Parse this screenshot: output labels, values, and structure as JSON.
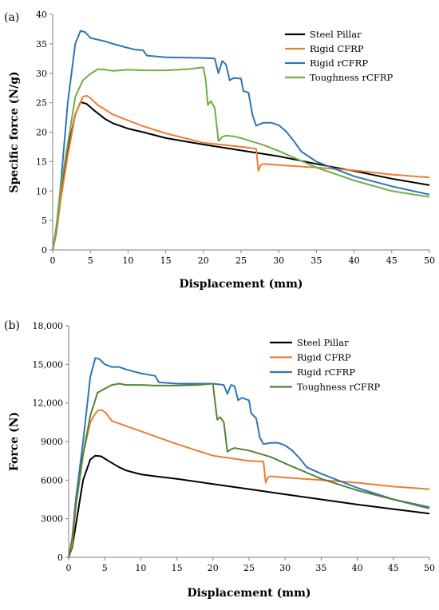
{
  "chart_data": [
    {
      "type": "line",
      "panel_label": "(a)",
      "xlabel": "Displacement (mm)",
      "ylabel": "Specific force (N/g)",
      "xlim": [
        0,
        50
      ],
      "ylim": [
        0,
        40
      ],
      "x_ticks": [
        "0",
        "5",
        "10",
        "15",
        "20",
        "25",
        "30",
        "35",
        "40",
        "45",
        "50"
      ],
      "y_ticks": [
        "0",
        "5",
        "10",
        "15",
        "20",
        "25",
        "30",
        "35",
        "40"
      ],
      "grid": false,
      "legend_position": "top-right",
      "series": [
        {
          "name": "Steel Pillar",
          "color": "#000000",
          "points": [
            [
              0,
              0
            ],
            [
              0.5,
              3
            ],
            [
              1,
              8
            ],
            [
              2,
              17
            ],
            [
              3,
              23
            ],
            [
              3.7,
              25.1
            ],
            [
              4.5,
              24.8
            ],
            [
              5.5,
              23.7
            ],
            [
              7,
              22.2
            ],
            [
              8,
              21.5
            ],
            [
              10,
              20.6
            ],
            [
              12,
              20
            ],
            [
              15,
              19
            ],
            [
              20,
              17.9
            ],
            [
              25,
              16.9
            ],
            [
              30,
              15.9
            ],
            [
              35,
              14.6
            ],
            [
              40,
              13.4
            ],
            [
              45,
              12.1
            ],
            [
              50,
              11
            ]
          ]
        },
        {
          "name": "Rigid CFRP",
          "color": "#ed7d31",
          "points": [
            [
              0,
              0
            ],
            [
              0.5,
              3
            ],
            [
              1,
              8
            ],
            [
              2,
              16
            ],
            [
              3,
              23
            ],
            [
              3.5,
              24.5
            ],
            [
              4,
              26
            ],
            [
              4.5,
              26.2
            ],
            [
              5,
              25.8
            ],
            [
              6,
              24.6
            ],
            [
              8,
              23
            ],
            [
              10,
              22
            ],
            [
              12,
              21
            ],
            [
              15,
              19.8
            ],
            [
              20,
              18.2
            ],
            [
              25,
              17.5
            ],
            [
              27,
              17.2
            ],
            [
              27.3,
              13.4
            ],
            [
              27.6,
              14.4
            ],
            [
              28,
              14.6
            ],
            [
              30,
              14.4
            ],
            [
              35,
              14
            ],
            [
              40,
              13.5
            ],
            [
              45,
              12.8
            ],
            [
              50,
              12.3
            ]
          ]
        },
        {
          "name": "Rigid rCFRP",
          "color": "#2e75b6",
          "points": [
            [
              0,
              0
            ],
            [
              0.5,
              4
            ],
            [
              1,
              10
            ],
            [
              2,
              25
            ],
            [
              3,
              35
            ],
            [
              3.7,
              37.2
            ],
            [
              4.3,
              37
            ],
            [
              5,
              36
            ],
            [
              6,
              35.7
            ],
            [
              7,
              35.4
            ],
            [
              8,
              35
            ],
            [
              10,
              34.3
            ],
            [
              11,
              34
            ],
            [
              12,
              33.9
            ],
            [
              12.5,
              33
            ],
            [
              15,
              32.7
            ],
            [
              20,
              32.6
            ],
            [
              21.5,
              32.5
            ],
            [
              22,
              30
            ],
            [
              22.5,
              32.1
            ],
            [
              23,
              31.5
            ],
            [
              23.5,
              28.8
            ],
            [
              24,
              29.2
            ],
            [
              25,
              29.1
            ],
            [
              25.3,
              27
            ],
            [
              26,
              26.7
            ],
            [
              26.5,
              23
            ],
            [
              27,
              21.1
            ],
            [
              28,
              21.6
            ],
            [
              29,
              21.6
            ],
            [
              30,
              21.2
            ],
            [
              31,
              20.1
            ],
            [
              32,
              18.5
            ],
            [
              33,
              16.7
            ],
            [
              35,
              15
            ],
            [
              40,
              12.5
            ],
            [
              45,
              10.8
            ],
            [
              50,
              9.4
            ]
          ]
        },
        {
          "name": "Toughness rCFRP",
          "color": "#70ad47",
          "points": [
            [
              0,
              0
            ],
            [
              0.5,
              4
            ],
            [
              1,
              10
            ],
            [
              2,
              18
            ],
            [
              3,
              26
            ],
            [
              4,
              28.8
            ],
            [
              5,
              29.9
            ],
            [
              6,
              30.7
            ],
            [
              7,
              30.6
            ],
            [
              8,
              30.4
            ],
            [
              9,
              30.5
            ],
            [
              10,
              30.6
            ],
            [
              12,
              30.5
            ],
            [
              15,
              30.5
            ],
            [
              18,
              30.7
            ],
            [
              20,
              31
            ],
            [
              20.3,
              29
            ],
            [
              20.6,
              24.6
            ],
            [
              21,
              25.3
            ],
            [
              21.5,
              24.1
            ],
            [
              22,
              18.5
            ],
            [
              22.5,
              19.2
            ],
            [
              23,
              19.4
            ],
            [
              24,
              19.3
            ],
            [
              25,
              19
            ],
            [
              28,
              17.8
            ],
            [
              30,
              16.8
            ],
            [
              35,
              14
            ],
            [
              40,
              11.8
            ],
            [
              45,
              10
            ],
            [
              50,
              9
            ]
          ]
        }
      ]
    },
    {
      "type": "line",
      "panel_label": "(b)",
      "xlabel": "Displacement (mm)",
      "ylabel": "Force (N)",
      "xlim": [
        0,
        50
      ],
      "ylim": [
        0,
        18000
      ],
      "x_ticks": [
        "0",
        "5",
        "10",
        "15",
        "20",
        "25",
        "30",
        "35",
        "40",
        "45",
        "50"
      ],
      "y_ticks": [
        "0",
        "3000",
        "6000",
        "9000",
        "12,000",
        "15,000",
        "18,000"
      ],
      "grid": false,
      "legend_position": "top-right",
      "series": [
        {
          "name": "Steel Pillar",
          "color": "#000000",
          "points": [
            [
              0,
              0
            ],
            [
              0.5,
              800
            ],
            [
              1,
              2500
            ],
            [
              2,
              6000
            ],
            [
              3,
              7600
            ],
            [
              3.7,
              7900
            ],
            [
              4.5,
              7850
            ],
            [
              5.5,
              7500
            ],
            [
              7,
              7000
            ],
            [
              8,
              6750
            ],
            [
              10,
              6450
            ],
            [
              12,
              6300
            ],
            [
              15,
              6100
            ],
            [
              20,
              5700
            ],
            [
              25,
              5300
            ],
            [
              30,
              4900
            ],
            [
              35,
              4500
            ],
            [
              40,
              4100
            ],
            [
              45,
              3750
            ],
            [
              50,
              3400
            ]
          ]
        },
        {
          "name": "Rigid CFRP",
          "color": "#ed7d31",
          "points": [
            [
              0,
              0
            ],
            [
              0.5,
              1000
            ],
            [
              1,
              4000
            ],
            [
              2,
              8000
            ],
            [
              3,
              10500
            ],
            [
              3.5,
              11000
            ],
            [
              4,
              11400
            ],
            [
              4.6,
              11450
            ],
            [
              5.2,
              11200
            ],
            [
              6,
              10600
            ],
            [
              8,
              10200
            ],
            [
              10,
              9800
            ],
            [
              12,
              9400
            ],
            [
              15,
              8800
            ],
            [
              20,
              7900
            ],
            [
              25,
              7500
            ],
            [
              27,
              7450
            ],
            [
              27.3,
              5800
            ],
            [
              27.6,
              6200
            ],
            [
              28,
              6300
            ],
            [
              30,
              6200
            ],
            [
              35,
              6000
            ],
            [
              40,
              5800
            ],
            [
              45,
              5500
            ],
            [
              50,
              5300
            ]
          ]
        },
        {
          "name": "Rigid rCFRP",
          "color": "#2e75b6",
          "points": [
            [
              0,
              0
            ],
            [
              0.5,
              1500
            ],
            [
              1,
              4500
            ],
            [
              2,
              9000
            ],
            [
              3,
              14000
            ],
            [
              3.7,
              15500
            ],
            [
              4.3,
              15400
            ],
            [
              5,
              15000
            ],
            [
              6,
              14800
            ],
            [
              7,
              14800
            ],
            [
              8,
              14600
            ],
            [
              10,
              14300
            ],
            [
              11,
              14200
            ],
            [
              12,
              14100
            ],
            [
              12.5,
              13600
            ],
            [
              15,
              13500
            ],
            [
              20,
              13500
            ],
            [
              21.5,
              13400
            ],
            [
              22,
              12700
            ],
            [
              22.5,
              13400
            ],
            [
              23,
              13300
            ],
            [
              23.5,
              12200
            ],
            [
              24,
              12400
            ],
            [
              25,
              12200
            ],
            [
              25.3,
              11200
            ],
            [
              26,
              10800
            ],
            [
              26.5,
              9300
            ],
            [
              27,
              8800
            ],
            [
              28,
              8900
            ],
            [
              29,
              8900
            ],
            [
              30,
              8700
            ],
            [
              31,
              8300
            ],
            [
              32,
              7700
            ],
            [
              33,
              7000
            ],
            [
              35,
              6500
            ],
            [
              40,
              5400
            ],
            [
              45,
              4500
            ],
            [
              50,
              3800
            ]
          ]
        },
        {
          "name": "Toughness rCFRP",
          "color": "#548235",
          "points": [
            [
              0,
              0
            ],
            [
              0.5,
              1500
            ],
            [
              1,
              4000
            ],
            [
              2,
              8000
            ],
            [
              3,
              11000
            ],
            [
              4,
              12800
            ],
            [
              5,
              13100
            ],
            [
              6,
              13400
            ],
            [
              7,
              13500
            ],
            [
              8,
              13400
            ],
            [
              10,
              13400
            ],
            [
              12,
              13350
            ],
            [
              15,
              13350
            ],
            [
              18,
              13400
            ],
            [
              20,
              13500
            ],
            [
              20.3,
              12000
            ],
            [
              20.6,
              10700
            ],
            [
              21,
              10900
            ],
            [
              21.5,
              10500
            ],
            [
              22,
              8200
            ],
            [
              22.5,
              8400
            ],
            [
              23,
              8500
            ],
            [
              25,
              8300
            ],
            [
              28,
              7800
            ],
            [
              30,
              7300
            ],
            [
              35,
              6100
            ],
            [
              40,
              5200
            ],
            [
              45,
              4500
            ],
            [
              50,
              3900
            ]
          ]
        }
      ]
    }
  ]
}
